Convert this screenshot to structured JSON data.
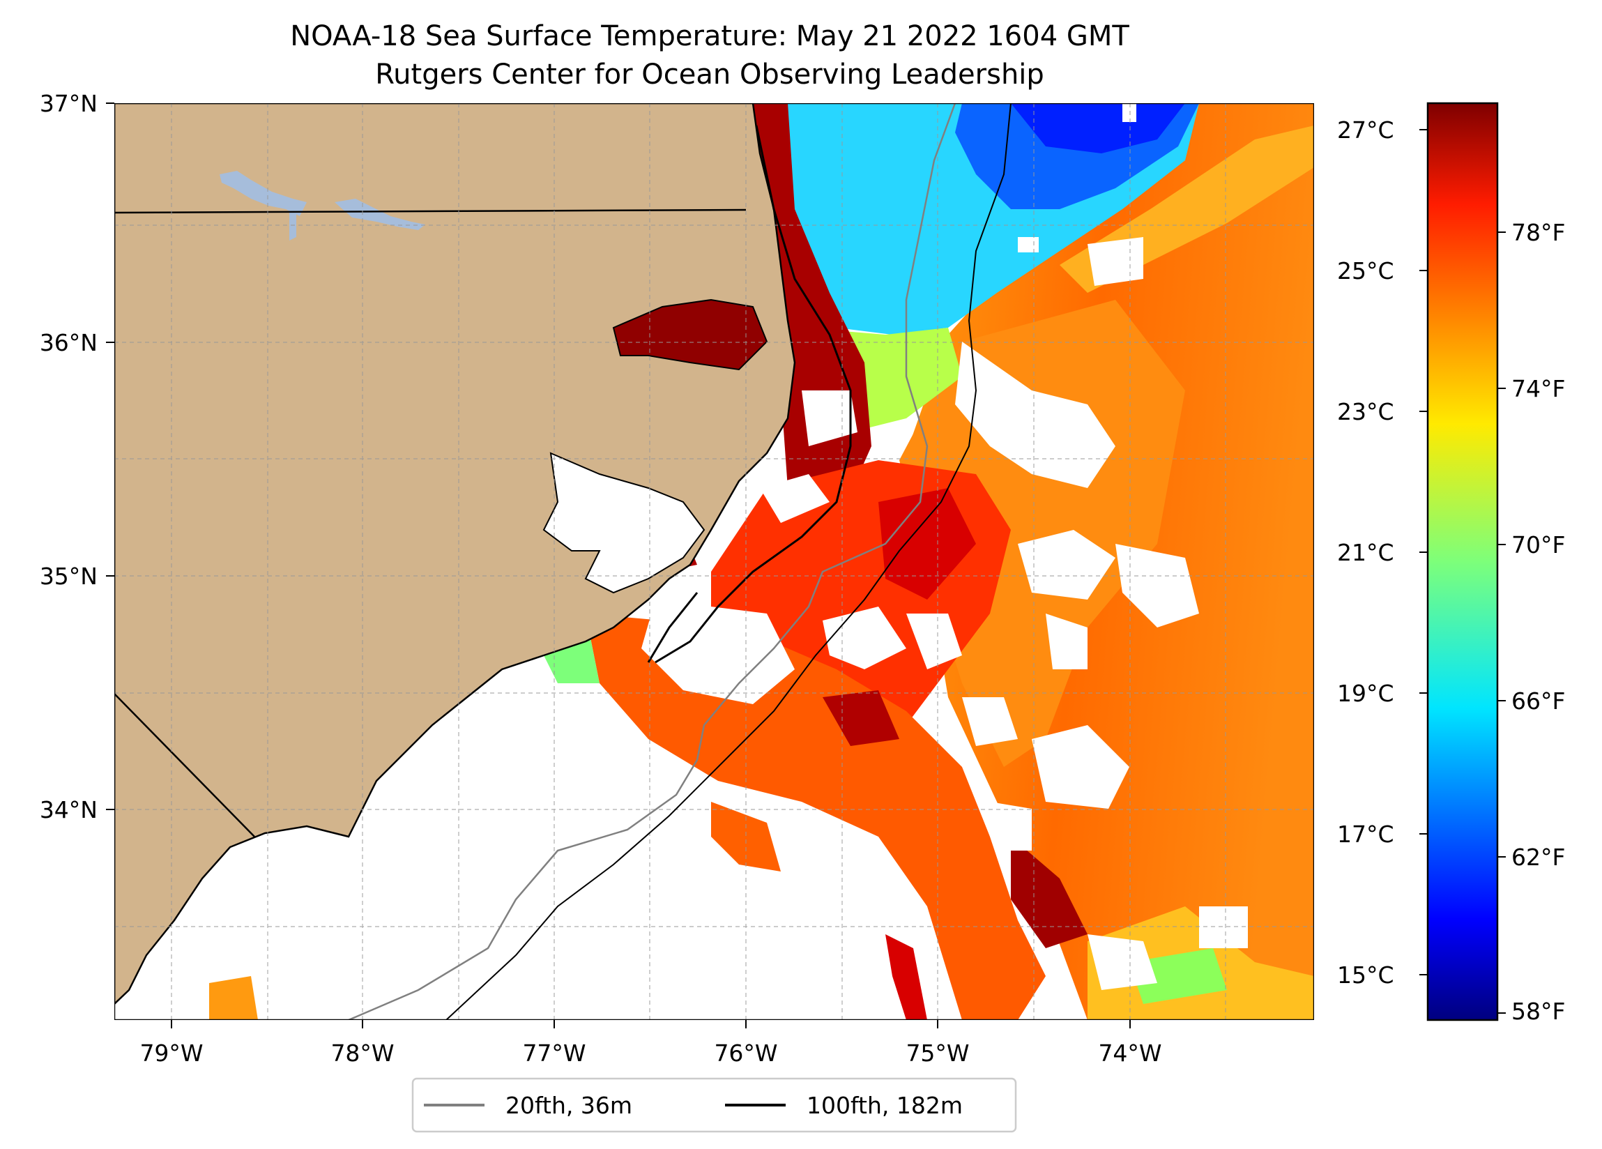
{
  "title": {
    "line1": "NOAA-18 Sea Surface Temperature: May 21 2022 1604 GMT",
    "line2": "Rutgers Center for Ocean Observing Leadership"
  },
  "map": {
    "lon_range": [
      -79.3,
      -73.1
    ],
    "lat_range": [
      33.1,
      37.0
    ],
    "lon_ticks": [
      "79°W",
      "78°W",
      "77°W",
      "76°W",
      "75°W",
      "74°W"
    ],
    "lat_ticks": [
      "37°N",
      "36°N",
      "35°N",
      "34°N"
    ],
    "grid": true,
    "colors": {
      "land": "#D2B48C",
      "water_bodies": "#A6BDDB",
      "cloud_mask": "#FFFFFF",
      "isobath_20fth": "#808080",
      "isobath_100fth": "#000000"
    }
  },
  "colorbar": {
    "colormap": "jet",
    "celsius_ticks": [
      "27°C",
      "25°C",
      "23°C",
      "21°C",
      "19°C",
      "17°C",
      "15°C"
    ],
    "fahrenheit_ticks": [
      "78°F",
      "74°F",
      "70°F",
      "66°F",
      "62°F",
      "58°F"
    ]
  },
  "legend": {
    "items": [
      {
        "label": "20fth, 36m",
        "color": "#808080"
      },
      {
        "label": "100fth, 182m",
        "color": "#000000"
      }
    ]
  }
}
